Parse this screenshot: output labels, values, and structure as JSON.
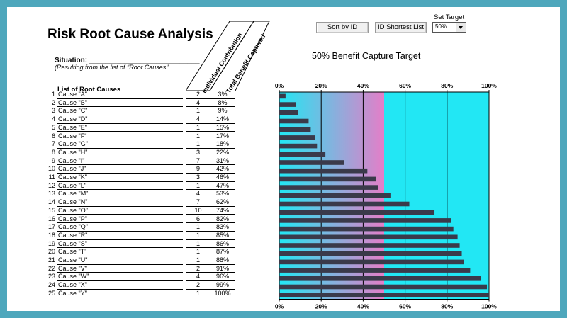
{
  "title": "Risk Root Cause Analysis",
  "situation": {
    "label": "Situation: ____________________________",
    "sub": "(Resulting from the list of \"Root Causes\""
  },
  "list_header": "List of Root Causes",
  "column_headers": {
    "individual": "Individual Contribution",
    "total": "Total Benefit Captured"
  },
  "controls": {
    "sort_by_id": "Sort by ID",
    "id_shortest_list": "ID Shortest List",
    "set_target_label": "Set Target",
    "target_value": "50%"
  },
  "colors": {
    "bar": "#3a3a4a",
    "target_band_start": "#22e7f4",
    "target_band_end": "#e47ec8",
    "background_band": "#22e7f4"
  },
  "rows": [
    {
      "num": "1",
      "name": "Cause \"A\"",
      "ind": "2",
      "tot": "3%"
    },
    {
      "num": "2",
      "name": "Cause \"B\"",
      "ind": "4",
      "tot": "8%"
    },
    {
      "num": "3",
      "name": "Cause \"C\"",
      "ind": "1",
      "tot": "9%"
    },
    {
      "num": "4",
      "name": "Cause \"D\"",
      "ind": "4",
      "tot": "14%"
    },
    {
      "num": "5",
      "name": "Cause \"E\"",
      "ind": "1",
      "tot": "15%"
    },
    {
      "num": "6",
      "name": "Cause \"F\"",
      "ind": "1",
      "tot": "17%"
    },
    {
      "num": "7",
      "name": "Cause \"G\"",
      "ind": "1",
      "tot": "18%"
    },
    {
      "num": "8",
      "name": "Cause \"H\"",
      "ind": "3",
      "tot": "22%"
    },
    {
      "num": "9",
      "name": "Cause \"I\"",
      "ind": "7",
      "tot": "31%"
    },
    {
      "num": "10",
      "name": "Cause \"J\"",
      "ind": "9",
      "tot": "42%"
    },
    {
      "num": "11",
      "name": "Cause \"K\"",
      "ind": "3",
      "tot": "46%"
    },
    {
      "num": "12",
      "name": "Cause \"L\"",
      "ind": "1",
      "tot": "47%"
    },
    {
      "num": "13",
      "name": "Cause \"M\"",
      "ind": "4",
      "tot": "53%"
    },
    {
      "num": "14",
      "name": "Cause \"N\"",
      "ind": "7",
      "tot": "62%"
    },
    {
      "num": "15",
      "name": "Cause \"O\"",
      "ind": "10",
      "tot": "74%"
    },
    {
      "num": "16",
      "name": "Cause \"P\"",
      "ind": "6",
      "tot": "82%"
    },
    {
      "num": "17",
      "name": "Cause \"Q\"",
      "ind": "1",
      "tot": "83%"
    },
    {
      "num": "18",
      "name": "Cause \"R\"",
      "ind": "1",
      "tot": "85%"
    },
    {
      "num": "19",
      "name": "Cause \"S\"",
      "ind": "1",
      "tot": "86%"
    },
    {
      "num": "20",
      "name": "Cause \"T\"",
      "ind": "1",
      "tot": "87%"
    },
    {
      "num": "21",
      "name": "Cause \"U\"",
      "ind": "1",
      "tot": "88%"
    },
    {
      "num": "22",
      "name": "Cause \"V\"",
      "ind": "2",
      "tot": "91%"
    },
    {
      "num": "23",
      "name": "Cause \"W\"",
      "ind": "4",
      "tot": "96%"
    },
    {
      "num": "24",
      "name": "Cause \"X\"",
      "ind": "2",
      "tot": "99%"
    },
    {
      "num": "25",
      "name": "Cause \"Y\"",
      "ind": "1",
      "tot": "100%"
    }
  ],
  "chart_data": {
    "type": "bar",
    "orientation": "horizontal",
    "title": "50% Benefit Capture Target",
    "categories": [
      "1",
      "2",
      "3",
      "4",
      "5",
      "6",
      "7",
      "8",
      "9",
      "10",
      "11",
      "12",
      "13",
      "14",
      "15",
      "16",
      "17",
      "18",
      "19",
      "20",
      "21",
      "22",
      "23",
      "24",
      "25"
    ],
    "values": [
      3,
      8,
      9,
      14,
      15,
      17,
      18,
      22,
      31,
      42,
      46,
      47,
      53,
      62,
      74,
      82,
      83,
      85,
      86,
      87,
      88,
      91,
      96,
      99,
      100
    ],
    "target": 50,
    "xlim": [
      0,
      100
    ],
    "xticks": [
      "0%",
      "20%",
      "40%",
      "60%",
      "80%",
      "100%"
    ],
    "grid": true
  }
}
